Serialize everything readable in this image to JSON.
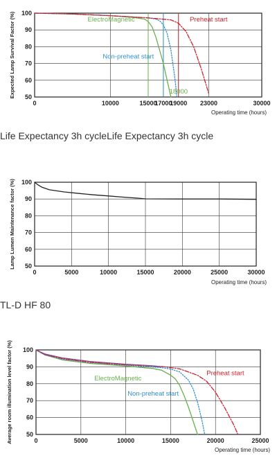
{
  "captions": {
    "caption1": "Life Expectancy 3h cycleLife Expectancy 3h cycle",
    "caption2": "TL-D HF 80"
  },
  "colors": {
    "green": "#6ab04c",
    "blue": "#2f8fcf",
    "red": "#d0202a",
    "purple": "#8a4a8a",
    "black": "#222222"
  },
  "chart_data": [
    {
      "type": "line",
      "ylabel": "Expected Lamp Survival Factor (%)",
      "xlabel": "Operating time (hours)",
      "xlim": [
        0,
        30000
      ],
      "ylim": [
        50,
        100
      ],
      "xticks": [
        0,
        10000,
        15000,
        17000,
        19000,
        23000,
        30000
      ],
      "xtick_labels": [
        "0",
        "10000",
        "15000",
        "17000",
        "19000",
        "23000",
        "30000"
      ],
      "yticks": [
        50,
        60,
        70,
        80,
        90,
        100
      ],
      "series": [
        {
          "name": "ElectroMagnetic",
          "color": "#6ab04c",
          "dash": "solid",
          "x": [
            0,
            5000,
            10000,
            13000,
            14500,
            15000,
            15500,
            16000,
            16500,
            17000,
            17500,
            18000
          ],
          "y": [
            100,
            99.5,
            98.5,
            97.5,
            96.5,
            95,
            92,
            86,
            78,
            70,
            60,
            50
          ]
        },
        {
          "name": "Non-preheat start",
          "color": "#2f8fcf",
          "dash": "dotted",
          "x": [
            0,
            5000,
            10000,
            15000,
            16000,
            16500,
            17000,
            17500,
            18000,
            18500,
            18800
          ],
          "y": [
            100,
            99.5,
            98.5,
            97.2,
            96.5,
            95.5,
            93,
            88,
            78,
            62,
            50
          ]
        },
        {
          "name": "Preheat start",
          "color": "#d0202a",
          "dash": "dashdot",
          "x": [
            0,
            5000,
            10000,
            15000,
            18000,
            19000,
            20000,
            21000,
            22000,
            23000
          ],
          "y": [
            100,
            99.5,
            98.5,
            97.2,
            96,
            94,
            89,
            80,
            67,
            52
          ]
        }
      ],
      "reference_lines": [
        {
          "x": 15000,
          "color": "#6ab04c"
        },
        {
          "x": 17000,
          "color": "#2f8fcf"
        },
        {
          "x": 19000,
          "color": "#d0202a"
        }
      ],
      "annotations": [
        {
          "text": "ElectroMagnetic",
          "color": "#6ab04c",
          "x": 7000,
          "y": 95
        },
        {
          "text": "Preheat start",
          "color": "#d0202a",
          "x": 20500,
          "y": 95
        },
        {
          "text": "Non-preheat start",
          "color": "#2f8fcf",
          "x": 9000,
          "y": 73
        },
        {
          "text": "18000",
          "color": "#6ab04c",
          "x": 17800,
          "y": 52
        }
      ]
    },
    {
      "type": "line",
      "ylabel": "Lamp Lumen Maintenance factor (%)",
      "xlabel": "Operating time (hours)",
      "xlim": [
        0,
        30000
      ],
      "ylim": [
        50,
        100
      ],
      "xticks": [
        0,
        5000,
        10000,
        15000,
        20000,
        25000,
        30000
      ],
      "xtick_labels": [
        "0",
        "5000",
        "10000",
        "15000",
        "20000",
        "25000",
        "30000"
      ],
      "yticks": [
        50,
        60,
        70,
        80,
        90,
        100
      ],
      "series": [
        {
          "color": "#222222",
          "dash": "solid",
          "x": [
            0,
            500,
            1000,
            2000,
            4000,
            6000,
            8000,
            10000,
            12000,
            14000,
            15000,
            20000,
            25000,
            30000
          ],
          "y": [
            100,
            98.3,
            97,
            95.5,
            94.2,
            93.3,
            92.5,
            91.8,
            91.1,
            90.5,
            90.1,
            90,
            90,
            89.8
          ]
        }
      ]
    },
    {
      "type": "line",
      "ylabel": "Average room illumination level factor (%)",
      "xlabel": "Operating time (hours)",
      "xlim": [
        0,
        25000
      ],
      "ylim": [
        50,
        100
      ],
      "xticks": [
        0,
        5000,
        10000,
        15000,
        20000,
        25000
      ],
      "xtick_labels": [
        "0",
        "5000",
        "10000",
        "15000",
        "20000",
        "25000"
      ],
      "yticks": [
        50,
        60,
        70,
        80,
        90,
        100
      ],
      "series": [
        {
          "name": "ElectroMagnetic",
          "color": "#6ab04c",
          "dash": "solid",
          "x": [
            0,
            1000,
            3000,
            6000,
            10000,
            13000,
            14000,
            15000,
            15500,
            16000,
            16500,
            17000,
            17500,
            18000
          ],
          "y": [
            100,
            97,
            94,
            92,
            90.5,
            89,
            88,
            85,
            83,
            79,
            73,
            66,
            58,
            50
          ]
        },
        {
          "name": "Non-preheat start",
          "color": "#2f8fcf",
          "dash": "dotted",
          "x": [
            0,
            1000,
            3000,
            6000,
            10000,
            14000,
            15000,
            16000,
            17000,
            17500,
            18000,
            18500,
            18800
          ],
          "y": [
            100,
            97,
            94.5,
            92.5,
            91,
            89.5,
            88.7,
            87,
            82,
            77,
            69,
            58,
            50
          ]
        },
        {
          "name": "Preheat start",
          "color": "#d0202a",
          "dash": "dashdot",
          "x": [
            0,
            1000,
            3000,
            6000,
            10000,
            14000,
            16000,
            18000,
            19000,
            20000,
            21000,
            22000,
            22500
          ],
          "y": [
            100,
            97.2,
            94.8,
            92.7,
            91.2,
            90.2,
            88.8,
            85,
            81.5,
            75,
            66,
            56,
            50
          ]
        },
        {
          "color": "#8a4a8a",
          "dash": "solid",
          "x": [
            0,
            1000,
            3000,
            6000,
            10000,
            13000,
            14000
          ],
          "y": [
            100,
            97.6,
            95.2,
            93.2,
            91.5,
            90.6,
            90
          ]
        }
      ],
      "annotations": [
        {
          "text": "ElectroMagnetic",
          "color": "#6ab04c",
          "x": 6500,
          "y": 82
        },
        {
          "text": "Preheat start",
          "color": "#d0202a",
          "x": 19000,
          "y": 85
        },
        {
          "text": "Non-preheat start",
          "color": "#2f8fcf",
          "x": 10200,
          "y": 73
        }
      ]
    }
  ]
}
